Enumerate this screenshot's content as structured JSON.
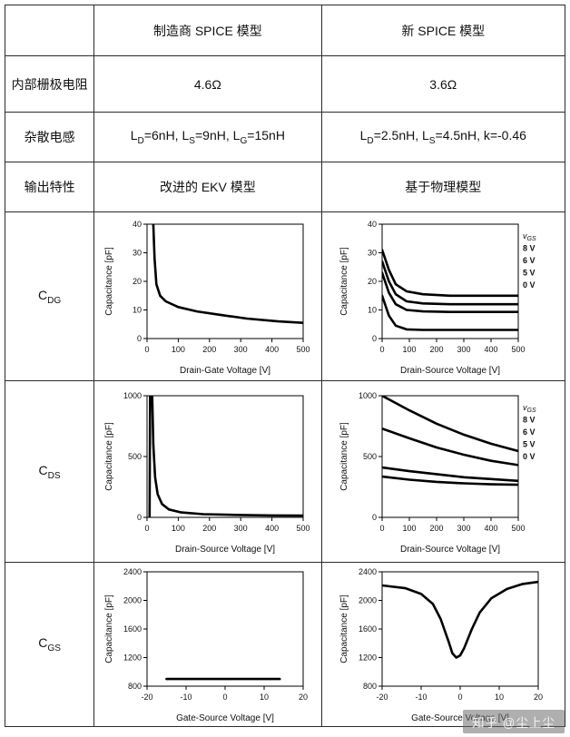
{
  "header": {
    "col1": "",
    "col2": "制造商 SPICE 模型",
    "col3": "新 SPICE 模型"
  },
  "rows": [
    {
      "label": [
        {
          "t": "内部栅极电阻"
        }
      ],
      "col2": [
        {
          "t": "4.6Ω"
        }
      ],
      "col3": [
        {
          "t": "3.6Ω"
        }
      ]
    },
    {
      "label": [
        {
          "t": "杂散电感"
        }
      ],
      "col2": [
        {
          "t": "L"
        },
        {
          "t": "D",
          "sub": true
        },
        {
          "t": "=6nH, L"
        },
        {
          "t": "S",
          "sub": true
        },
        {
          "t": "=9nH, L"
        },
        {
          "t": "G",
          "sub": true
        },
        {
          "t": "=15nH"
        }
      ],
      "col3": [
        {
          "t": "L"
        },
        {
          "t": "D",
          "sub": true
        },
        {
          "t": "=2.5nH, L"
        },
        {
          "t": "S",
          "sub": true
        },
        {
          "t": "=4.5nH, k=-0.46"
        }
      ]
    },
    {
      "label": [
        {
          "t": "输出特性"
        }
      ],
      "col2": [
        {
          "t": "改进的 EKV 模型"
        }
      ],
      "col3": [
        {
          "t": "基于物理模型"
        }
      ]
    }
  ],
  "chart_rows": [
    {
      "label": [
        {
          "t": "C"
        },
        {
          "t": "DG",
          "sub": true
        }
      ]
    },
    {
      "label": [
        {
          "t": "C"
        },
        {
          "t": "DS",
          "sub": true
        }
      ]
    },
    {
      "label": [
        {
          "t": "C"
        },
        {
          "t": "GS",
          "sub": true
        }
      ]
    }
  ],
  "watermark": "知乎 @尘上尘",
  "chart_data": [
    {
      "id": "cdg-manufacturer",
      "type": "line",
      "xlabel": "Drain-Gate Voltage [V]",
      "ylabel": "Capacitance [pF]",
      "xlim": [
        0,
        500
      ],
      "ylim": [
        0,
        40
      ],
      "xticks": [
        0,
        100,
        200,
        300,
        400,
        500
      ],
      "yticks": [
        0,
        10,
        20,
        30,
        40
      ],
      "legend_title": null,
      "series": [
        {
          "name": "",
          "points": [
            [
              14,
              46
            ],
            [
              20,
              40
            ],
            [
              24,
              28
            ],
            [
              30,
              19
            ],
            [
              42,
              15
            ],
            [
              60,
              13
            ],
            [
              100,
              11
            ],
            [
              160,
              9.5
            ],
            [
              240,
              8.2
            ],
            [
              320,
              7
            ],
            [
              420,
              6
            ],
            [
              500,
              5.5
            ]
          ]
        }
      ]
    },
    {
      "id": "cdg-new",
      "type": "line",
      "xlabel": "Drain-Source Voltage [V]",
      "ylabel": "Capacitance [pF]",
      "xlim": [
        0,
        500
      ],
      "ylim": [
        0,
        40
      ],
      "xticks": [
        0,
        100,
        200,
        300,
        400,
        500
      ],
      "yticks": [
        0,
        10,
        20,
        30,
        40
      ],
      "legend_title": {
        "main": "v",
        "sub": "GS"
      },
      "series": [
        {
          "name": "8 V",
          "points": [
            [
              0,
              31
            ],
            [
              25,
              24
            ],
            [
              50,
              19
            ],
            [
              90,
              16.5
            ],
            [
              150,
              15.5
            ],
            [
              250,
              15
            ],
            [
              500,
              15
            ]
          ]
        },
        {
          "name": "6 V",
          "points": [
            [
              0,
              27
            ],
            [
              25,
              20
            ],
            [
              50,
              15.5
            ],
            [
              90,
              13
            ],
            [
              150,
              12.3
            ],
            [
              250,
              12
            ],
            [
              500,
              12
            ]
          ]
        },
        {
          "name": "5 V",
          "points": [
            [
              0,
              23
            ],
            [
              25,
              16
            ],
            [
              50,
              12
            ],
            [
              90,
              10
            ],
            [
              150,
              9.5
            ],
            [
              250,
              9.3
            ],
            [
              500,
              9.3
            ]
          ]
        },
        {
          "name": "0 V",
          "points": [
            [
              0,
              15
            ],
            [
              25,
              8
            ],
            [
              50,
              4.5
            ],
            [
              90,
              3.2
            ],
            [
              150,
              3
            ],
            [
              250,
              3
            ],
            [
              500,
              3
            ]
          ]
        }
      ]
    },
    {
      "id": "cds-manufacturer",
      "type": "line",
      "xlabel": "Drain-Source Voltage [V]",
      "ylabel": "Capacitance [pF]",
      "xlim": [
        0,
        500
      ],
      "ylim": [
        0,
        1000
      ],
      "xticks": [
        0,
        100,
        200,
        300,
        400,
        500
      ],
      "yticks": [
        0,
        500,
        1000
      ],
      "legend_title": null,
      "series": [
        {
          "name": "",
          "points": [
            [
              8,
              0
            ],
            [
              10,
              1060
            ],
            [
              16,
              1060
            ],
            [
              20,
              600
            ],
            [
              26,
              330
            ],
            [
              34,
              190
            ],
            [
              48,
              110
            ],
            [
              70,
              65
            ],
            [
              110,
              40
            ],
            [
              180,
              26
            ],
            [
              280,
              20
            ],
            [
              400,
              16
            ],
            [
              500,
              14
            ]
          ]
        }
      ]
    },
    {
      "id": "cds-new",
      "type": "line",
      "xlabel": "Drain-Source Voltage [V]",
      "ylabel": "Capacitance [pF]",
      "xlim": [
        0,
        500
      ],
      "ylim": [
        0,
        1000
      ],
      "xticks": [
        0,
        100,
        200,
        300,
        400,
        500
      ],
      "yticks": [
        0,
        500,
        1000
      ],
      "legend_title": {
        "main": "v",
        "sub": "GS"
      },
      "series": [
        {
          "name": "8 V",
          "points": [
            [
              0,
              1000
            ],
            [
              100,
              880
            ],
            [
              200,
              770
            ],
            [
              300,
              680
            ],
            [
              400,
              605
            ],
            [
              500,
              545
            ]
          ]
        },
        {
          "name": "6 V",
          "points": [
            [
              0,
              730
            ],
            [
              100,
              650
            ],
            [
              200,
              575
            ],
            [
              300,
              515
            ],
            [
              400,
              465
            ],
            [
              500,
              430
            ]
          ]
        },
        {
          "name": "5 V",
          "points": [
            [
              0,
              410
            ],
            [
              100,
              380
            ],
            [
              200,
              355
            ],
            [
              300,
              330
            ],
            [
              400,
              315
            ],
            [
              500,
              300
            ]
          ]
        },
        {
          "name": "0 V",
          "points": [
            [
              0,
              335
            ],
            [
              100,
              310
            ],
            [
              200,
              292
            ],
            [
              300,
              280
            ],
            [
              400,
              272
            ],
            [
              500,
              268
            ]
          ]
        }
      ]
    },
    {
      "id": "cgs-manufacturer",
      "type": "line",
      "xlabel": "Gate-Source Voltage [V]",
      "ylabel": "Capacitance [pF]",
      "xlim": [
        -20,
        20
      ],
      "ylim": [
        800,
        2400
      ],
      "xticks": [
        -20,
        -10,
        0,
        10,
        20
      ],
      "yticks": [
        800,
        1200,
        1600,
        2000,
        2400
      ],
      "legend_title": null,
      "series": [
        {
          "name": "",
          "points": [
            [
              -15,
              900
            ],
            [
              14,
              900
            ]
          ]
        }
      ]
    },
    {
      "id": "cgs-new",
      "type": "line",
      "xlabel": "Gate-Source Voltage [V]",
      "ylabel": "Capacitance [pF]",
      "xlim": [
        -20,
        20
      ],
      "ylim": [
        800,
        2400
      ],
      "xticks": [
        -20,
        -10,
        0,
        10,
        20
      ],
      "yticks": [
        800,
        1200,
        1600,
        2000,
        2400
      ],
      "legend_title": null,
      "series": [
        {
          "name": "",
          "points": [
            [
              -20,
              2210
            ],
            [
              -14,
              2170
            ],
            [
              -10,
              2090
            ],
            [
              -7,
              1950
            ],
            [
              -5,
              1740
            ],
            [
              -3,
              1430
            ],
            [
              -2,
              1260
            ],
            [
              -1,
              1200
            ],
            [
              0,
              1230
            ],
            [
              1,
              1330
            ],
            [
              3,
              1600
            ],
            [
              5,
              1830
            ],
            [
              8,
              2030
            ],
            [
              12,
              2160
            ],
            [
              16,
              2230
            ],
            [
              20,
              2260
            ]
          ]
        }
      ]
    }
  ]
}
